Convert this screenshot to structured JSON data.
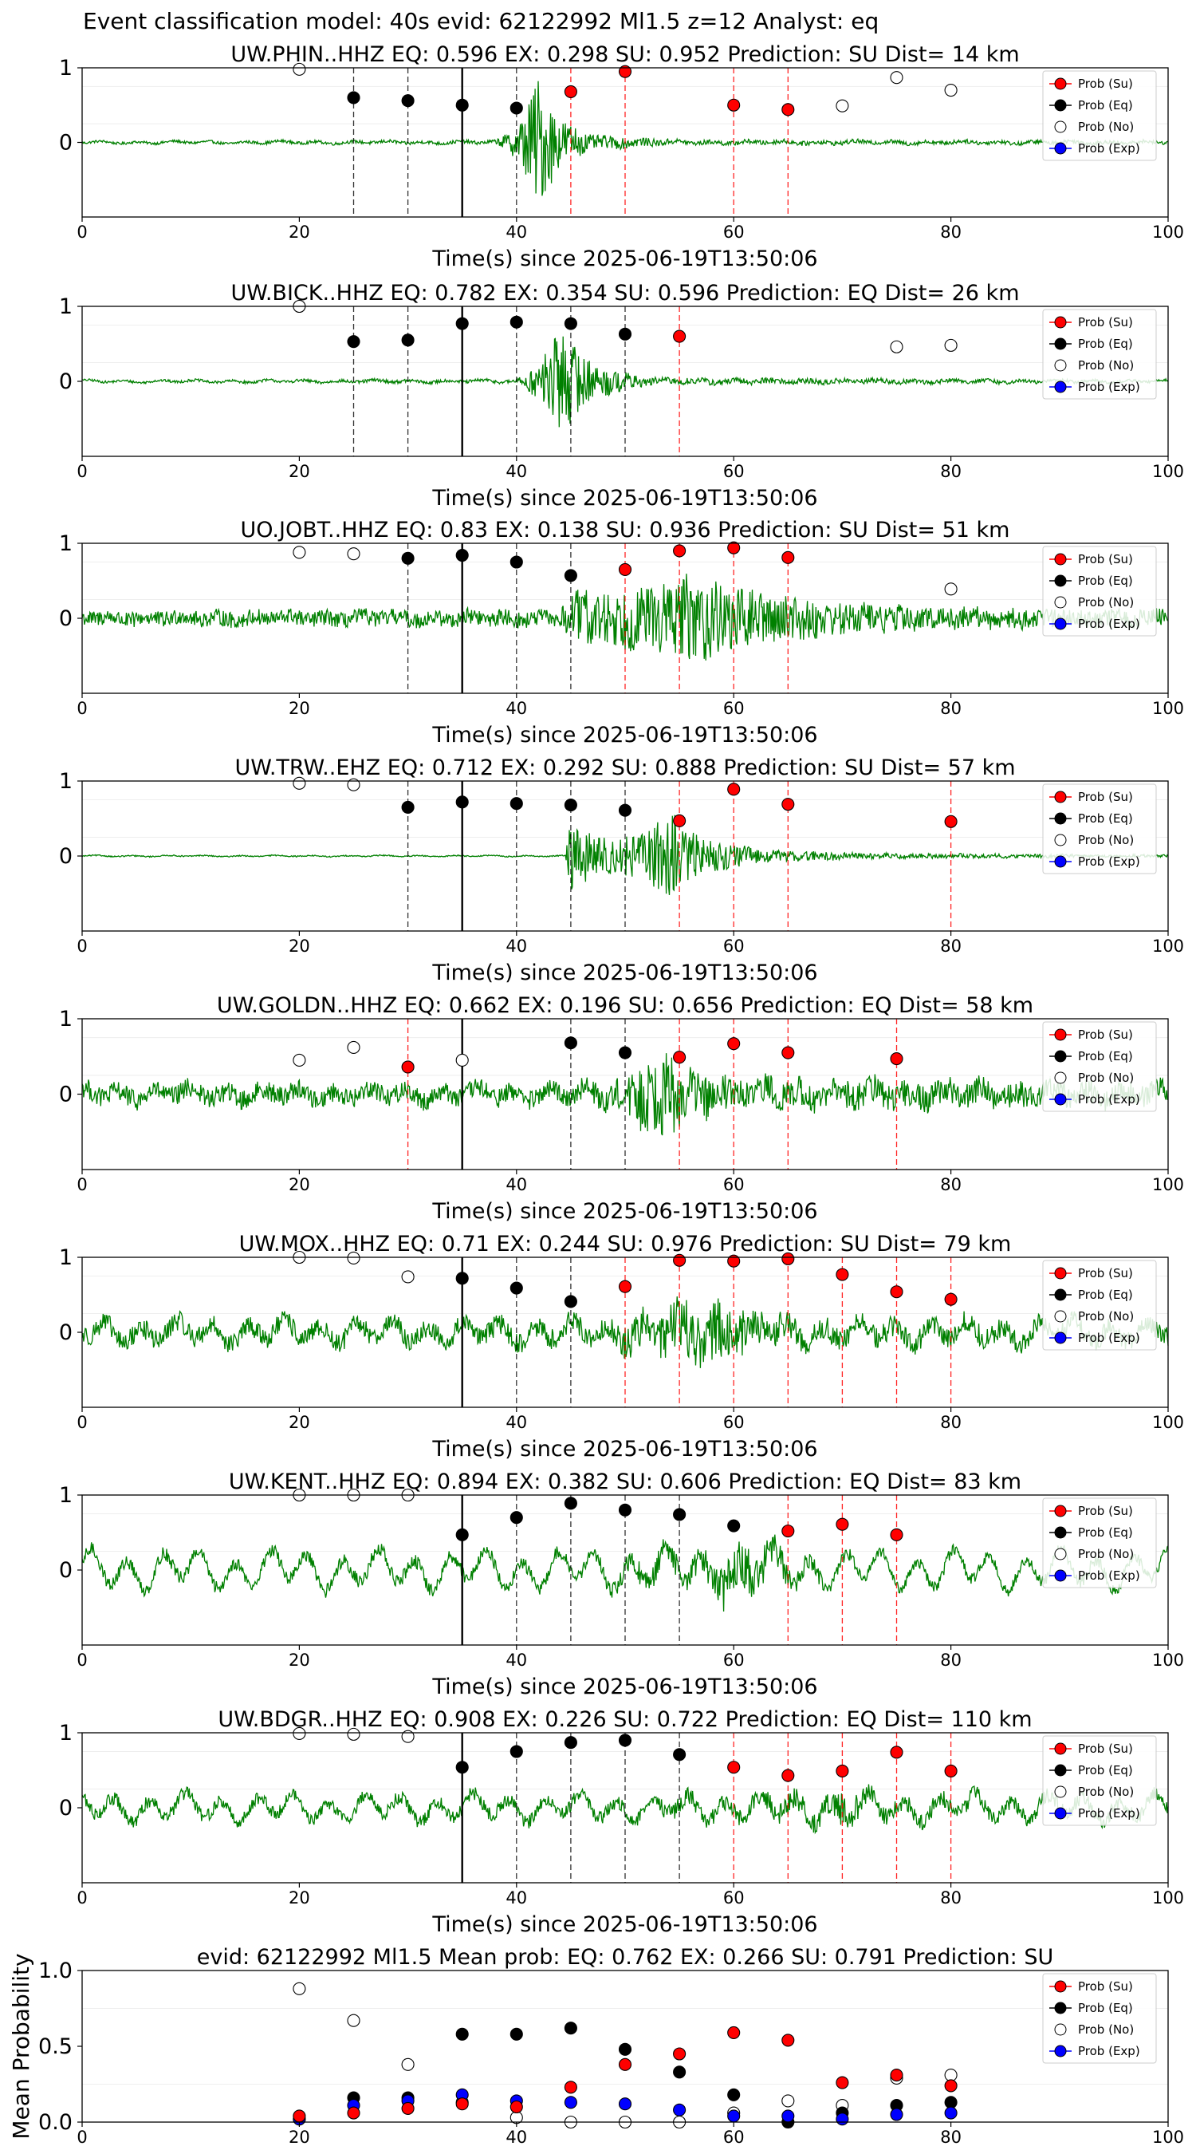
{
  "suptitle": "Event classification model: 40s evid: 62122992 Ml1.5 z=12 Analyst: eq",
  "x_axis_label": "Time(s) since 2025-06-19T13:50:06",
  "legend_labels": [
    "Prob (Su)",
    "Prob (Eq)",
    "Prob (No)",
    "Prob (Exp)"
  ],
  "colors": {
    "waveform": "#008000",
    "su_marker": "#ff0000",
    "eq_marker": "#000000",
    "no_marker": "#ffffff",
    "exp_marker": "#0000ff",
    "su_line": "#ff0000",
    "eq_line": "#000000",
    "pick_line": "#000000"
  },
  "chart_data": [
    {
      "type": "scatter",
      "title": "UW.PHIN..HHZ   EQ: 0.596  EX: 0.298  SU: 0.952   Prediction: SU    Dist= 14 km",
      "xlim": [
        0,
        100
      ],
      "xticks": [
        0,
        20,
        40,
        60,
        80,
        100
      ],
      "yticks": [
        0,
        1
      ],
      "waveform": {
        "amp": 0.08,
        "lf": 0.1,
        "env": [
          [
            0,
            0.2
          ],
          [
            38,
            0.3
          ],
          [
            40,
            2.5
          ],
          [
            42,
            11
          ],
          [
            44,
            4
          ],
          [
            47,
            1.2
          ],
          [
            55,
            0.4
          ],
          [
            100,
            0.3
          ]
        ]
      },
      "pick": 35,
      "eq_lines": [
        25,
        30,
        40
      ],
      "su_lines": [
        45,
        50,
        60,
        65
      ],
      "series": [
        {
          "name": "Prob (Su)",
          "x": [
            45,
            50,
            60,
            65
          ],
          "y": [
            0.68,
            0.95,
            0.5,
            0.44
          ]
        },
        {
          "name": "Prob (Eq)",
          "x": [
            25,
            30,
            35,
            40
          ],
          "y": [
            0.6,
            0.56,
            0.5,
            0.46
          ]
        },
        {
          "name": "Prob (No)",
          "x": [
            20,
            70,
            75,
            80
          ],
          "y": [
            0.98,
            0.49,
            0.87,
            0.7
          ]
        }
      ]
    },
    {
      "type": "scatter",
      "title": "UW.BICK..HHZ   EQ: 0.782  EX: 0.354  SU: 0.596   Prediction: EQ    Dist= 26 km",
      "xlim": [
        0,
        100
      ],
      "xticks": [
        0,
        20,
        40,
        60,
        80,
        100
      ],
      "yticks": [
        0,
        1
      ],
      "waveform": {
        "amp": 0.08,
        "lf": 0.1,
        "env": [
          [
            0,
            0.2
          ],
          [
            40,
            0.3
          ],
          [
            42,
            3
          ],
          [
            44,
            9
          ],
          [
            47,
            3
          ],
          [
            52,
            0.6
          ],
          [
            100,
            0.2
          ]
        ]
      },
      "pick": 35,
      "eq_lines": [
        25,
        30,
        40,
        45,
        50
      ],
      "su_lines": [
        55
      ],
      "series": [
        {
          "name": "Prob (Su)",
          "x": [
            55
          ],
          "y": [
            0.6
          ]
        },
        {
          "name": "Prob (Eq)",
          "x": [
            25,
            30,
            35,
            40,
            45,
            50
          ],
          "y": [
            0.53,
            0.55,
            0.77,
            0.79,
            0.77,
            0.63
          ]
        },
        {
          "name": "Prob (No)",
          "x": [
            20,
            75,
            80
          ],
          "y": [
            1.0,
            0.46,
            0.48
          ]
        }
      ]
    },
    {
      "type": "scatter",
      "title": "UO.JOBT..HHZ   EQ: 0.83  EX: 0.138  SU: 0.936   Prediction: SU    Dist= 51 km",
      "xlim": [
        0,
        100
      ],
      "xticks": [
        0,
        20,
        40,
        60,
        80,
        100
      ],
      "yticks": [
        0,
        1
      ],
      "waveform": {
        "amp": 0.12,
        "lf": 0.2,
        "env": [
          [
            0,
            0.9
          ],
          [
            44,
            0.9
          ],
          [
            45,
            3
          ],
          [
            52,
            3.5
          ],
          [
            56,
            5
          ],
          [
            62,
            3
          ],
          [
            70,
            1.8
          ],
          [
            80,
            1.2
          ],
          [
            100,
            1
          ]
        ]
      },
      "pick": 35,
      "eq_lines": [
        30,
        40,
        45
      ],
      "su_lines": [
        50,
        55,
        60,
        65
      ],
      "series": [
        {
          "name": "Prob (Su)",
          "x": [
            50,
            55,
            60,
            65
          ],
          "y": [
            0.65,
            0.9,
            0.94,
            0.81
          ]
        },
        {
          "name": "Prob (Eq)",
          "x": [
            30,
            35,
            40,
            45
          ],
          "y": [
            0.8,
            0.84,
            0.75,
            0.57
          ]
        },
        {
          "name": "Prob (No)",
          "x": [
            20,
            25,
            80
          ],
          "y": [
            0.88,
            0.86,
            0.39
          ]
        }
      ]
    },
    {
      "type": "scatter",
      "title": "UW.TRW..EHZ   EQ: 0.712  EX: 0.292  SU: 0.888   Prediction: SU    Dist= 57 km",
      "xlim": [
        0,
        100
      ],
      "xticks": [
        0,
        20,
        40,
        60,
        80,
        100
      ],
      "yticks": [
        0,
        1
      ],
      "waveform": {
        "amp": 0.08,
        "lf": 0.05,
        "env": [
          [
            0,
            0.1
          ],
          [
            44.5,
            0.1
          ],
          [
            45,
            6
          ],
          [
            48,
            3
          ],
          [
            52,
            4
          ],
          [
            54,
            8
          ],
          [
            57,
            3
          ],
          [
            63,
            1
          ],
          [
            75,
            0.4
          ],
          [
            100,
            0.2
          ]
        ]
      },
      "pick": 35,
      "eq_lines": [
        30,
        40,
        45,
        50
      ],
      "su_lines": [
        55,
        60,
        65,
        80
      ],
      "series": [
        {
          "name": "Prob (Su)",
          "x": [
            55,
            60,
            65,
            80
          ],
          "y": [
            0.47,
            0.89,
            0.69,
            0.46
          ]
        },
        {
          "name": "Prob (Eq)",
          "x": [
            30,
            35,
            40,
            45,
            50
          ],
          "y": [
            0.65,
            0.72,
            0.7,
            0.68,
            0.61
          ]
        },
        {
          "name": "Prob (No)",
          "x": [
            20,
            25
          ],
          "y": [
            0.97,
            0.95
          ]
        }
      ]
    },
    {
      "type": "scatter",
      "title": "UW.GOLDN..HHZ   EQ: 0.662  EX: 0.196  SU: 0.656   Prediction: EQ    Dist= 58 km",
      "xlim": [
        0,
        100
      ],
      "xticks": [
        0,
        20,
        40,
        60,
        80,
        100
      ],
      "yticks": [
        0,
        1
      ],
      "waveform": {
        "amp": 0.11,
        "lf": 0.5,
        "env": [
          [
            0,
            1.2
          ],
          [
            45,
            1.2
          ],
          [
            50,
            2
          ],
          [
            53,
            6
          ],
          [
            56,
            3
          ],
          [
            62,
            1.8
          ],
          [
            100,
            1.4
          ]
        ]
      },
      "pick": 35,
      "eq_lines": [
        45,
        50
      ],
      "su_lines": [
        30,
        55,
        60,
        65,
        75
      ],
      "series": [
        {
          "name": "Prob (Su)",
          "x": [
            30,
            55,
            60,
            65,
            75
          ],
          "y": [
            0.36,
            0.49,
            0.67,
            0.55,
            0.47
          ]
        },
        {
          "name": "Prob (Eq)",
          "x": [
            45,
            50
          ],
          "y": [
            0.68,
            0.55
          ]
        },
        {
          "name": "Prob (No)",
          "x": [
            20,
            25,
            35
          ],
          "y": [
            0.45,
            0.62,
            0.45
          ]
        }
      ]
    },
    {
      "type": "scatter",
      "title": "UW.MOX..HHZ   EQ: 0.71  EX: 0.244  SU: 0.976   Prediction: SU    Dist= 79 km",
      "xlim": [
        0,
        100
      ],
      "xticks": [
        0,
        20,
        40,
        60,
        80,
        100
      ],
      "yticks": [
        0,
        1
      ],
      "waveform": {
        "amp": 0.09,
        "lf": 0.9,
        "env": [
          [
            0,
            1.5
          ],
          [
            48,
            1.5
          ],
          [
            50,
            2.5
          ],
          [
            54,
            3.5
          ],
          [
            59,
            5
          ],
          [
            63,
            2.5
          ],
          [
            70,
            1.6
          ],
          [
            100,
            1.5
          ]
        ]
      },
      "pick": 35,
      "eq_lines": [
        40,
        45
      ],
      "su_lines": [
        50,
        55,
        60,
        65,
        70,
        75,
        80
      ],
      "series": [
        {
          "name": "Prob (Su)",
          "x": [
            50,
            55,
            60,
            65,
            70,
            75,
            80
          ],
          "y": [
            0.61,
            0.96,
            0.95,
            0.98,
            0.77,
            0.54,
            0.44
          ]
        },
        {
          "name": "Prob (Eq)",
          "x": [
            35,
            40,
            45
          ],
          "y": [
            0.72,
            0.59,
            0.41
          ]
        },
        {
          "name": "Prob (No)",
          "x": [
            20,
            25,
            30
          ],
          "y": [
            1.0,
            0.99,
            0.74
          ]
        }
      ]
    },
    {
      "type": "scatter",
      "title": "UW.KENT..HHZ   EQ: 0.894  EX: 0.382  SU: 0.606   Prediction: EQ    Dist= 83 km",
      "xlim": [
        0,
        100
      ],
      "xticks": [
        0,
        20,
        40,
        60,
        80,
        100
      ],
      "yticks": [
        0,
        1
      ],
      "waveform": {
        "amp": 0.06,
        "lf": 1.6,
        "env": [
          [
            0,
            1.5
          ],
          [
            48,
            1.5
          ],
          [
            50,
            2.5
          ],
          [
            57,
            3
          ],
          [
            60,
            6
          ],
          [
            62,
            5
          ],
          [
            65,
            2.5
          ],
          [
            72,
            1.3
          ],
          [
            100,
            1.2
          ]
        ]
      },
      "pick": 35,
      "eq_lines": [
        40,
        45,
        50,
        55
      ],
      "su_lines": [
        65,
        70,
        75
      ],
      "series": [
        {
          "name": "Prob (Su)",
          "x": [
            65,
            70,
            75
          ],
          "y": [
            0.52,
            0.61,
            0.47
          ]
        },
        {
          "name": "Prob (Eq)",
          "x": [
            35,
            40,
            45,
            50,
            55,
            60
          ],
          "y": [
            0.47,
            0.7,
            0.89,
            0.8,
            0.74,
            0.59
          ]
        },
        {
          "name": "Prob (No)",
          "x": [
            20,
            25,
            30
          ],
          "y": [
            1.0,
            1.0,
            1.0
          ]
        }
      ]
    },
    {
      "type": "scatter",
      "title": "UW.BDGR..HHZ   EQ: 0.908  EX: 0.226  SU: 0.722   Prediction: EQ    Dist= 110 km",
      "xlim": [
        0,
        100
      ],
      "xticks": [
        0,
        20,
        40,
        60,
        80,
        100
      ],
      "yticks": [
        0,
        1
      ],
      "waveform": {
        "amp": 0.06,
        "lf": 1.1,
        "env": [
          [
            0,
            1.5
          ],
          [
            52,
            1.5
          ],
          [
            53,
            2.5
          ],
          [
            57,
            1.8
          ],
          [
            68,
            2.5
          ],
          [
            70,
            4
          ],
          [
            73,
            2
          ],
          [
            100,
            1.5
          ]
        ]
      },
      "pick": 35,
      "eq_lines": [
        40,
        45,
        50,
        55
      ],
      "su_lines": [
        60,
        65,
        70,
        75,
        80
      ],
      "series": [
        {
          "name": "Prob (Su)",
          "x": [
            60,
            65,
            70,
            75,
            80
          ],
          "y": [
            0.54,
            0.43,
            0.49,
            0.74,
            0.49
          ]
        },
        {
          "name": "Prob (Eq)",
          "x": [
            35,
            40,
            45,
            50,
            55
          ],
          "y": [
            0.54,
            0.75,
            0.87,
            0.9,
            0.71
          ]
        },
        {
          "name": "Prob (No)",
          "x": [
            20,
            25,
            30
          ],
          "y": [
            0.99,
            0.98,
            0.95
          ]
        }
      ]
    },
    {
      "type": "scatter",
      "title": "evid: 62122992  Ml1.5   Mean prob:   EQ: 0.762  EX: 0.266  SU: 0.791   Prediction: SU",
      "ylabel": "Mean Probability",
      "xlim": [
        0,
        100
      ],
      "ylim": [
        0,
        1.0
      ],
      "xticks": [
        0,
        20,
        40,
        60,
        80,
        100
      ],
      "yticks": [
        0,
        0.5,
        1.0
      ],
      "ytick_labels": [
        "0.0",
        "0.5",
        "1.0"
      ],
      "x": [
        20,
        25,
        30,
        35,
        40,
        45,
        50,
        55,
        60,
        65,
        70,
        75,
        80
      ],
      "series": [
        {
          "name": "Prob (No)",
          "values": [
            0.88,
            0.67,
            0.38,
            0.13,
            0.03,
            0.0,
            0.0,
            0.0,
            0.06,
            0.14,
            0.11,
            0.29,
            0.31
          ]
        },
        {
          "name": "Prob (Eq)",
          "values": [
            0.02,
            0.16,
            0.16,
            0.58,
            0.58,
            0.62,
            0.48,
            0.33,
            0.18,
            0.0,
            0.06,
            0.11,
            0.13
          ]
        },
        {
          "name": "Prob (Exp)",
          "values": [
            0.02,
            0.11,
            0.14,
            0.18,
            0.14,
            0.13,
            0.12,
            0.08,
            0.04,
            0.04,
            0.02,
            0.05,
            0.06
          ]
        },
        {
          "name": "Prob (Su)",
          "values": [
            0.04,
            0.06,
            0.09,
            0.12,
            0.1,
            0.23,
            0.38,
            0.45,
            0.59,
            0.54,
            0.26,
            0.31,
            0.24
          ]
        }
      ]
    }
  ]
}
